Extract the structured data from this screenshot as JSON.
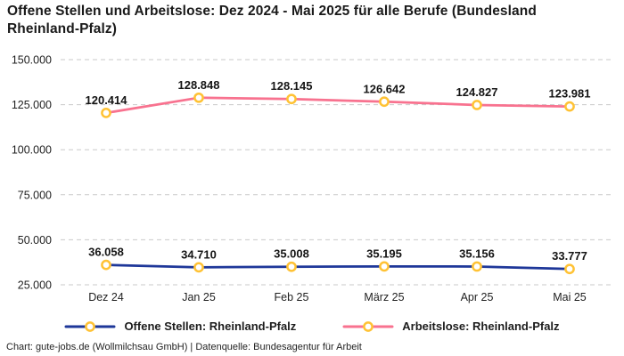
{
  "page": {
    "title": "Offene Stellen und Arbeitslose: Dez 2024 - Mai 2025 für alle Berufe (Bundesland Rheinland-Pfalz)",
    "footer": "Chart: gute-jobs.de (Wollmilchsau GmbH) | Datenquelle: Bundesagentur für Arbeit"
  },
  "colors": {
    "open_positions_line": "#1e3799",
    "unemployed_line": "#f8728f",
    "marker_ring": "#ffc234",
    "marker_fill": "#ffffff",
    "gridline": "#c9c9c9",
    "text": "#1a1a1a"
  },
  "chart_data": {
    "type": "line",
    "title": "Offene Stellen und Arbeitslose: Dez 2024 - Mai 2025 für alle Berufe (Bundesland Rheinland-Pfalz)",
    "categories": [
      "Dez 24",
      "Jan 25",
      "Feb 25",
      "März 25",
      "Apr 25",
      "Mai 25"
    ],
    "series": [
      {
        "name": "Offene Stellen: Rheinland-Pfalz",
        "color": "#1e3799",
        "marker_color": "#ffc234",
        "values": [
          36058,
          34710,
          35008,
          35195,
          35156,
          33777
        ]
      },
      {
        "name": "Arbeitslose: Rheinland-Pfalz",
        "color": "#f8728f",
        "marker_color": "#ffc234",
        "values": [
          120414,
          128848,
          128145,
          126642,
          124827,
          123981
        ]
      }
    ],
    "xlabel": "",
    "ylabel": "",
    "ylim": [
      25000,
      150000
    ],
    "yticks": [
      25000,
      50000,
      75000,
      100000,
      125000,
      150000
    ],
    "grid": "horizontal-dashed",
    "legend_position": "bottom",
    "number_format": "de-thousands-dot",
    "data_labels": true
  }
}
